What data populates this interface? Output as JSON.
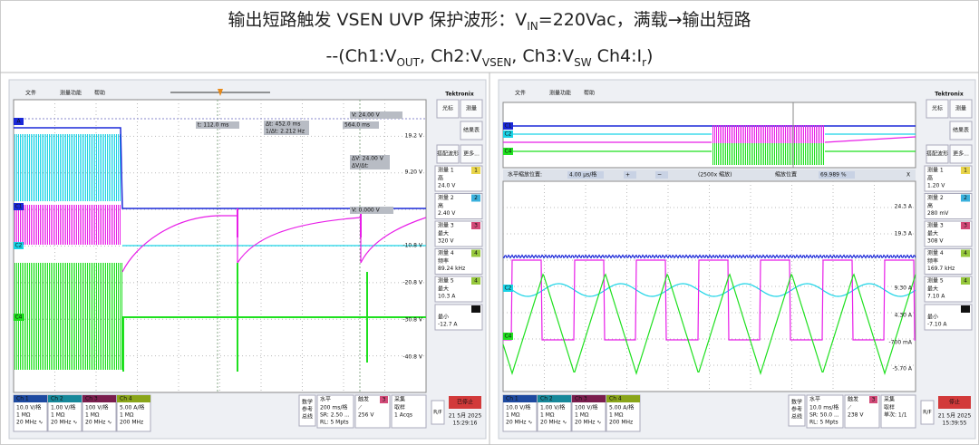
{
  "header": {
    "title": [
      "输出短路触发 VSEN UVP 保护波形：V",
      "IN",
      "=220Vac，满载→输出短路"
    ],
    "subtitle": [
      "--(Ch1:V",
      "OUT",
      ", Ch2:V",
      "VSEN",
      ", Ch3:V",
      "SW",
      " Ch4:I",
      "r",
      ")"
    ]
  },
  "scopes": [
    {
      "menu": [
        "文件",
        "测量功能",
        "帮助"
      ],
      "brand": "Tektronix",
      "buttons": [
        "光标",
        "测量",
        "结果表",
        "搭配波形",
        "更多..."
      ],
      "measurements": [
        {
          "label": "测量 1",
          "badge": "1",
          "kind": "高",
          "value": "24.0 V"
        },
        {
          "label": "测量 2",
          "badge": "2",
          "kind": "高",
          "value": "2.40 V"
        },
        {
          "label": "测量 3",
          "badge": "3",
          "kind": "最大",
          "value": "320 V"
        },
        {
          "label": "测量 4",
          "badge": "4",
          "kind": "频率",
          "value": "89.24 kHz"
        },
        {
          "label": "测量 5",
          "badge": "4",
          "kind": "最大",
          "value": "10.3 A"
        }
      ],
      "extra": {
        "badge": "4",
        "kind": "最小",
        "value": "-12.7 A"
      },
      "axis_labels": [
        "19.2 V",
        "9.20 V",
        "-10.8 V",
        "-20.8 V",
        "-30.8 V",
        "-40.8 V"
      ],
      "markers": [
        "A",
        "C1",
        "C2",
        "C4"
      ],
      "overlay": [
        "t:   112.0 ms",
        "Δt:   452.0 ms",
        "1/Δt:   2.212 Hz",
        "564.0 ms",
        "V:    24.00 V",
        "ΔV:    24.00 V",
        "ΔV/Δt:",
        "V:    0.000 V"
      ],
      "channels": [
        {
          "name": "Ch 1",
          "lines": [
            "10.0 V/格",
            "1 MΩ",
            "20 MHz ∿"
          ]
        },
        {
          "name": "Ch 2",
          "lines": [
            "1.00 V/格",
            "1 MΩ",
            "20 MHz ∿"
          ]
        },
        {
          "name": "Ch 3",
          "lines": [
            "100 V/格",
            "1 MΩ",
            "20 MHz ∿"
          ]
        },
        {
          "name": "Ch 4",
          "lines": [
            "5.00 A/格",
            "1 MΩ",
            "200 MHz"
          ]
        }
      ],
      "math": [
        "数学",
        "参考",
        "总线"
      ],
      "horizontal": {
        "label": "水平",
        "lines": [
          "200 ms/格",
          "SR: 2.50 ...",
          "RL: 5 Mpts"
        ]
      },
      "trigger": {
        "label": "触发",
        "badge": "3",
        "lines": [
          "⟋",
          "256 V"
        ]
      },
      "acquire": {
        "label": "采集",
        "lines": [
          "取样",
          "1 Acqs"
        ]
      },
      "rf": "R/F",
      "status": "已停止",
      "date": "21 5月 2025",
      "time": "15:29:16"
    },
    {
      "menu": [
        "文件",
        "测量功能",
        "帮助"
      ],
      "brand": "Tektronix",
      "buttons": [
        "光标",
        "测量",
        "结果表",
        "搭配波形",
        "更多..."
      ],
      "measurements": [
        {
          "label": "测量 1",
          "badge": "1",
          "kind": "高",
          "value": "1.20 V"
        },
        {
          "label": "测量 2",
          "badge": "2",
          "kind": "高",
          "value": "280 mV"
        },
        {
          "label": "测量 3",
          "badge": "3",
          "kind": "最大",
          "value": "308 V"
        },
        {
          "label": "测量 4",
          "badge": "4",
          "kind": "频率",
          "value": "169.7 kHz"
        },
        {
          "label": "测量 5",
          "badge": "4",
          "kind": "最大",
          "value": "7.10 A"
        }
      ],
      "extra": {
        "badge": "4",
        "kind": "最小",
        "value": "-7.10 A"
      },
      "axis_labels": [
        "24.3 A",
        "19.3 A",
        "9.30 A",
        "4.30 A",
        "-700 mA",
        "-5.70 A"
      ],
      "markers": [
        "C1",
        "C2",
        "C4",
        "C2",
        "C4"
      ],
      "overlay": [
        "水平缩放位置:",
        "4.00 µs/格",
        "+",
        "−",
        "(2500x 缩放)",
        "缩放位置",
        "69.989 %",
        "X"
      ],
      "channels": [
        {
          "name": "Ch 1",
          "lines": [
            "10.0 V/格",
            "1 MΩ",
            "20 MHz ∿"
          ]
        },
        {
          "name": "Ch 2",
          "lines": [
            "1.00 V/格",
            "1 MΩ",
            "20 MHz ∿"
          ]
        },
        {
          "name": "Ch 3",
          "lines": [
            "100 V/格",
            "1 MΩ",
            "20 MHz ∿"
          ]
        },
        {
          "name": "Ch 4",
          "lines": [
            "5.00 A/格",
            "1 MΩ",
            "200 MHz"
          ]
        }
      ],
      "math": [
        "数学",
        "参考",
        "总线"
      ],
      "horizontal": {
        "label": "水平",
        "lines": [
          "10.0 ms/格",
          "SR: 50.0 ...",
          "RL: 5 Mpts"
        ]
      },
      "trigger": {
        "label": "触发",
        "badge": "3",
        "lines": [
          "⟋",
          "238 V"
        ]
      },
      "acquire": {
        "label": "采集",
        "lines": [
          "取样",
          "单次: 1/1"
        ]
      },
      "rf": "R/F",
      "status": "停止",
      "date": "21 5月 2025",
      "time": "15:39:55"
    }
  ]
}
